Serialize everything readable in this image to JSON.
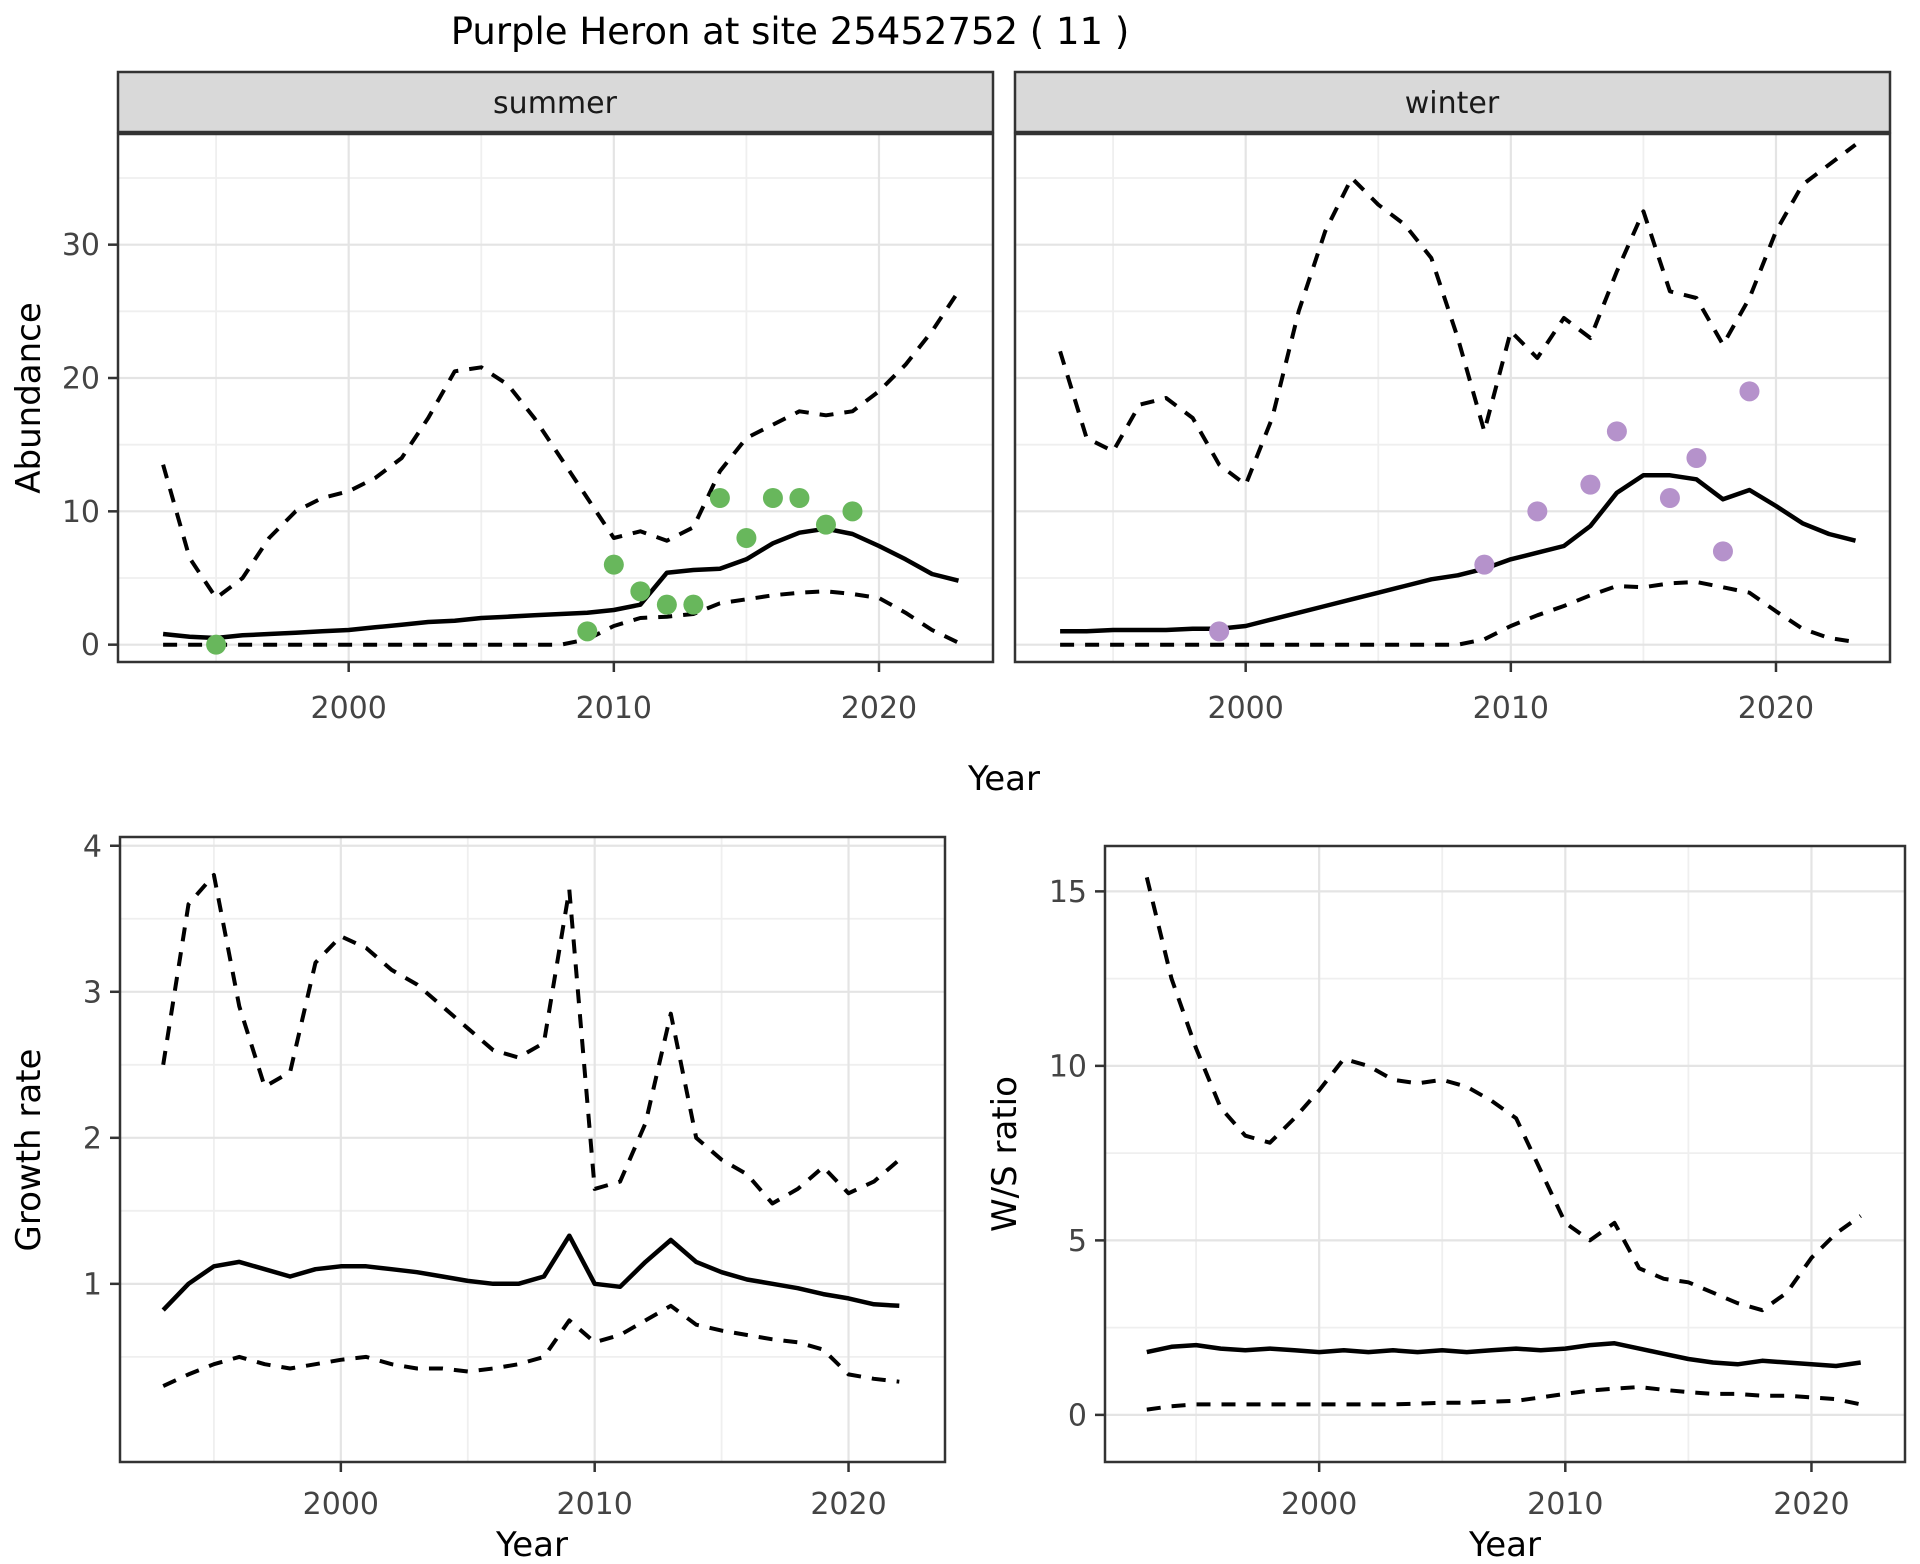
{
  "title": "Purple Heron at site 25452752 ( 11 )",
  "x_label": "Year",
  "colors": {
    "points_summer": "#68b75c",
    "points_winter": "#b592cb",
    "line": "#000000",
    "strip_bg": "#d9d9d9",
    "grid_major": "#e4e4e4",
    "grid_minor": "#efefef",
    "panel_border": "#333333",
    "tick_text": "#444444"
  },
  "chart_data": [
    {
      "id": "abundance-summer",
      "type": "line",
      "facet_label": "summer",
      "ylabel": "Abundance",
      "xlim": [
        1991.3,
        2024.3
      ],
      "ylim": [
        -1.3,
        38.3
      ],
      "xticks": [
        2000,
        2010,
        2020
      ],
      "yticks": [
        0,
        10,
        20,
        30
      ],
      "x": [
        1993,
        1994,
        1995,
        1996,
        1997,
        1998,
        1999,
        2000,
        2001,
        2002,
        2003,
        2004,
        2005,
        2006,
        2007,
        2008,
        2009,
        2010,
        2011,
        2012,
        2013,
        2014,
        2015,
        2016,
        2017,
        2018,
        2019,
        2020,
        2021,
        2022,
        2023
      ],
      "series": [
        {
          "name": "upper_ci",
          "style": "dashed",
          "y": [
            13.5,
            6.5,
            3.5,
            5,
            8,
            10,
            11,
            11.5,
            12.5,
            14,
            17,
            20.5,
            20.8,
            19.5,
            17,
            14,
            11,
            8,
            8.5,
            7.8,
            8.8,
            13,
            15.5,
            16.5,
            17.5,
            17.2,
            17.5,
            19,
            21,
            23.5,
            26.5
          ]
        },
        {
          "name": "lower_ci",
          "style": "dashed",
          "y": [
            0,
            0,
            0,
            0,
            0,
            0,
            0,
            0,
            0,
            0,
            0,
            0,
            0,
            0,
            0,
            0,
            0.4,
            1.4,
            2.0,
            2.1,
            2.3,
            3.1,
            3.4,
            3.7,
            3.9,
            4.0,
            3.8,
            3.5,
            2.4,
            1.1,
            0.15
          ]
        },
        {
          "name": "median",
          "style": "solid",
          "y": [
            0.8,
            0.6,
            0.5,
            0.7,
            0.8,
            0.9,
            1.0,
            1.1,
            1.3,
            1.5,
            1.7,
            1.8,
            2.0,
            2.1,
            2.2,
            2.3,
            2.4,
            2.6,
            3.0,
            5.4,
            5.6,
            5.7,
            6.4,
            7.6,
            8.4,
            8.7,
            8.3,
            7.4,
            6.4,
            5.3,
            4.8
          ]
        }
      ],
      "points": {
        "name": "observed-counts-summer",
        "color_key": "points_summer",
        "x": [
          1995,
          2009,
          2010,
          2011,
          2012,
          2013,
          2014,
          2015,
          2016,
          2017,
          2018,
          2019
        ],
        "y": [
          0,
          1,
          6,
          4,
          3,
          3,
          11,
          8,
          11,
          11,
          9,
          10
        ]
      }
    },
    {
      "id": "abundance-winter",
      "type": "line",
      "facet_label": "winter",
      "ylabel": "Abundance",
      "xlim": [
        1991.3,
        2024.3
      ],
      "ylim": [
        -1.3,
        38.3
      ],
      "xticks": [
        2000,
        2010,
        2020
      ],
      "yticks": [
        0,
        10,
        20,
        30
      ],
      "x": [
        1993,
        1994,
        1995,
        1996,
        1997,
        1998,
        1999,
        2000,
        2001,
        2002,
        2003,
        2004,
        2005,
        2006,
        2007,
        2008,
        2009,
        2010,
        2011,
        2012,
        2013,
        2014,
        2015,
        2016,
        2017,
        2018,
        2019,
        2020,
        2021,
        2022,
        2023
      ],
      "series": [
        {
          "name": "upper_ci",
          "style": "dashed",
          "y": [
            22,
            15.5,
            14.5,
            18,
            18.5,
            17,
            13.5,
            12,
            17,
            25,
            31,
            35,
            33,
            31.5,
            29,
            23,
            16,
            23.5,
            21.5,
            24.5,
            23,
            28,
            32.5,
            26.5,
            26,
            22.5,
            26,
            31,
            34.5,
            36,
            37.5
          ]
        },
        {
          "name": "lower_ci",
          "style": "dashed",
          "y": [
            0,
            0,
            0,
            0,
            0,
            0,
            0,
            0,
            0,
            0,
            0,
            0,
            0,
            0,
            0,
            0,
            0.4,
            1.4,
            2.2,
            2.9,
            3.7,
            4.4,
            4.3,
            4.6,
            4.7,
            4.3,
            3.9,
            2.5,
            1.2,
            0.5,
            0.2
          ]
        },
        {
          "name": "median",
          "style": "solid",
          "y": [
            1.0,
            1.0,
            1.1,
            1.1,
            1.1,
            1.2,
            1.2,
            1.4,
            1.9,
            2.4,
            2.9,
            3.4,
            3.9,
            4.4,
            4.9,
            5.2,
            5.7,
            6.4,
            6.9,
            7.4,
            8.9,
            11.4,
            12.7,
            12.7,
            12.4,
            10.9,
            11.6,
            10.4,
            9.1,
            8.3,
            7.8
          ]
        }
      ],
      "points": {
        "name": "observed-counts-winter",
        "color_key": "points_winter",
        "x": [
          1999,
          2009,
          2011,
          2013,
          2014,
          2016,
          2017,
          2018,
          2019
        ],
        "y": [
          1,
          6,
          10,
          12,
          16,
          11,
          14,
          7,
          19
        ]
      }
    },
    {
      "id": "growth-rate",
      "type": "line",
      "facet_label": null,
      "ylabel": "Growth rate",
      "xlim": [
        1991.3,
        2023.8
      ],
      "ylim": [
        -0.22,
        4.06
      ],
      "xticks": [
        2000,
        2010,
        2020
      ],
      "yticks": [
        1,
        2,
        3,
        4
      ],
      "x": [
        1993,
        1994,
        1995,
        1996,
        1997,
        1998,
        1999,
        2000,
        2001,
        2002,
        2003,
        2004,
        2005,
        2006,
        2007,
        2008,
        2009,
        2010,
        2011,
        2012,
        2013,
        2014,
        2015,
        2016,
        2017,
        2018,
        2019,
        2020,
        2021,
        2022
      ],
      "series": [
        {
          "name": "upper_ci",
          "style": "dashed",
          "y": [
            2.5,
            3.6,
            3.8,
            2.9,
            2.35,
            2.45,
            3.2,
            3.38,
            3.3,
            3.15,
            3.05,
            2.9,
            2.75,
            2.6,
            2.55,
            2.65,
            3.7,
            1.65,
            1.7,
            2.1,
            2.85,
            2.0,
            1.85,
            1.75,
            1.55,
            1.65,
            1.8,
            1.62,
            1.7,
            1.85
          ]
        },
        {
          "name": "lower_ci",
          "style": "dashed",
          "y": [
            0.3,
            0.38,
            0.45,
            0.5,
            0.45,
            0.42,
            0.45,
            0.48,
            0.5,
            0.45,
            0.42,
            0.42,
            0.4,
            0.42,
            0.45,
            0.5,
            0.75,
            0.6,
            0.65,
            0.75,
            0.85,
            0.72,
            0.68,
            0.65,
            0.62,
            0.6,
            0.55,
            0.38,
            0.35,
            0.33
          ]
        },
        {
          "name": "median",
          "style": "solid",
          "y": [
            0.82,
            1.0,
            1.12,
            1.15,
            1.1,
            1.05,
            1.1,
            1.12,
            1.12,
            1.1,
            1.08,
            1.05,
            1.02,
            1.0,
            1.0,
            1.05,
            1.33,
            1.0,
            0.98,
            1.15,
            1.3,
            1.15,
            1.08,
            1.03,
            1.0,
            0.97,
            0.93,
            0.9,
            0.86,
            0.85
          ]
        }
      ],
      "points": null
    },
    {
      "id": "ws-ratio",
      "type": "line",
      "facet_label": null,
      "ylabel": "W/S ratio",
      "xlim": [
        1991.3,
        2023.8
      ],
      "ylim": [
        -1.35,
        16.3
      ],
      "xticks": [
        2000,
        2010,
        2020
      ],
      "yticks": [
        0,
        5,
        10,
        15
      ],
      "x": [
        1993,
        1994,
        1995,
        1996,
        1997,
        1998,
        1999,
        2000,
        2001,
        2002,
        2003,
        2004,
        2005,
        2006,
        2007,
        2008,
        2009,
        2010,
        2011,
        2012,
        2013,
        2014,
        2015,
        2016,
        2017,
        2018,
        2019,
        2020,
        2021,
        2022
      ],
      "series": [
        {
          "name": "upper_ci",
          "style": "dashed",
          "y": [
            15.4,
            12.5,
            10.5,
            8.8,
            8.0,
            7.8,
            8.5,
            9.3,
            10.2,
            10.0,
            9.6,
            9.5,
            9.6,
            9.4,
            9.0,
            8.5,
            7.0,
            5.5,
            5.0,
            5.5,
            4.2,
            3.9,
            3.8,
            3.5,
            3.2,
            3.0,
            3.5,
            4.5,
            5.2,
            5.7
          ]
        },
        {
          "name": "lower_ci",
          "style": "dashed",
          "y": [
            0.15,
            0.25,
            0.3,
            0.3,
            0.3,
            0.3,
            0.3,
            0.3,
            0.3,
            0.3,
            0.3,
            0.32,
            0.35,
            0.35,
            0.38,
            0.4,
            0.5,
            0.6,
            0.7,
            0.75,
            0.8,
            0.72,
            0.65,
            0.6,
            0.6,
            0.55,
            0.55,
            0.5,
            0.45,
            0.3
          ]
        },
        {
          "name": "median",
          "style": "solid",
          "y": [
            1.8,
            1.95,
            2.0,
            1.9,
            1.85,
            1.9,
            1.85,
            1.8,
            1.85,
            1.8,
            1.85,
            1.8,
            1.85,
            1.8,
            1.85,
            1.9,
            1.85,
            1.9,
            2.0,
            2.05,
            1.9,
            1.75,
            1.6,
            1.5,
            1.45,
            1.55,
            1.5,
            1.45,
            1.4,
            1.5
          ]
        }
      ],
      "points": null
    }
  ]
}
